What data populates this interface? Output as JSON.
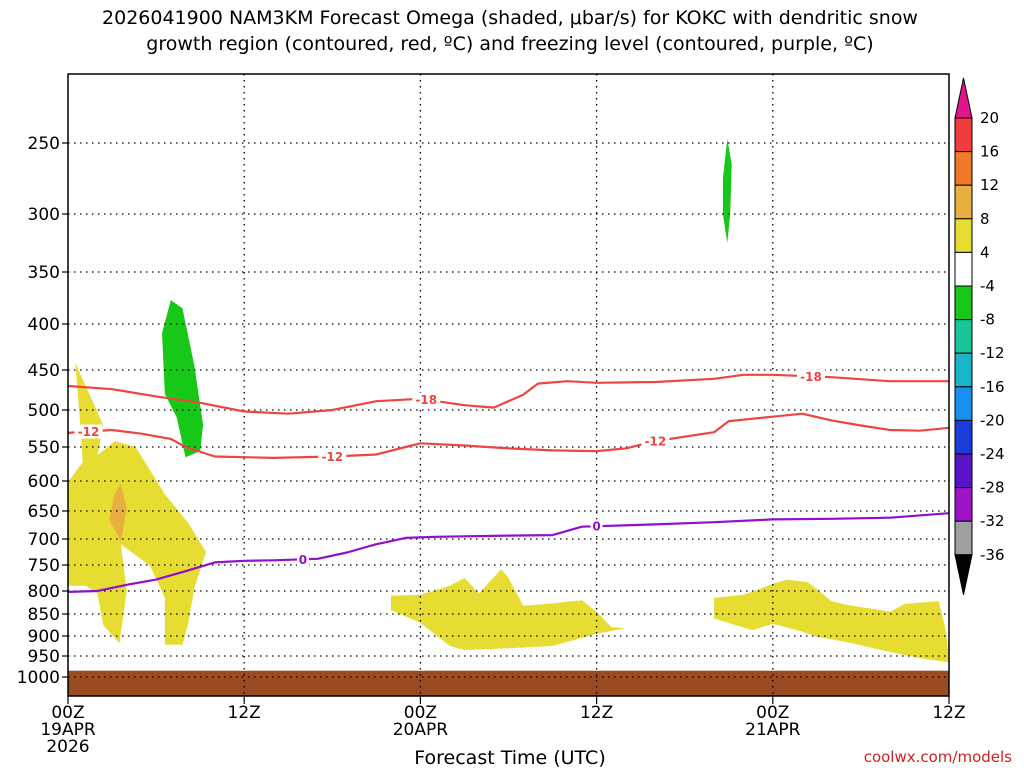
{
  "chart_data": {
    "type": "time-height cross-section",
    "title_line1": "2026041900 NAM3KM Forecast Omega (shaded, μbar/s) for KOKC with dendritic snow",
    "title_line2": "growth region (contoured, red, ºC) and freezing level (contoured, purple, ºC)",
    "xlabel": "Forecast Time (UTC)",
    "credit": "coolwx.com/models",
    "x_range_hours": [
      0,
      60
    ],
    "y_range_hPa": [
      1050,
      200
    ],
    "y_ticks": [
      {
        "v": 250,
        "label": "250"
      },
      {
        "v": 300,
        "label": "300"
      },
      {
        "v": 350,
        "label": "350"
      },
      {
        "v": 400,
        "label": "400"
      },
      {
        "v": 450,
        "label": "450"
      },
      {
        "v": 500,
        "label": "500"
      },
      {
        "v": 550,
        "label": "550"
      },
      {
        "v": 600,
        "label": "600"
      },
      {
        "v": 650,
        "label": "650"
      },
      {
        "v": 700,
        "label": "700"
      },
      {
        "v": 750,
        "label": "750"
      },
      {
        "v": 800,
        "label": "800"
      },
      {
        "v": 850,
        "label": "850"
      },
      {
        "v": 900,
        "label": "900"
      },
      {
        "v": 950,
        "label": "950"
      },
      {
        "v": 1000,
        "label": "1000"
      }
    ],
    "x_ticks": [
      {
        "h": 0,
        "lines": [
          "00Z",
          "19APR",
          "2026"
        ]
      },
      {
        "h": 12,
        "lines": [
          "12Z"
        ]
      },
      {
        "h": 24,
        "lines": [
          "00Z",
          "20APR"
        ]
      },
      {
        "h": 36,
        "lines": [
          "12Z"
        ]
      },
      {
        "h": 48,
        "lines": [
          "00Z",
          "21APR"
        ]
      },
      {
        "h": 60,
        "lines": [
          "12Z"
        ]
      }
    ],
    "colorbar": {
      "labels": [
        "20",
        "16",
        "12",
        "8",
        "4",
        "-4",
        "-8",
        "-12",
        "-16",
        "-20",
        "-24",
        "-28",
        "-32",
        "-36"
      ],
      "colors": [
        "#f03c3c",
        "#f07a28",
        "#e8b040",
        "#e6dc32",
        "#ffffff",
        "#18c818",
        "#16c896",
        "#18b4c8",
        "#1890f0",
        "#1c3cdc",
        "#5a14c8",
        "#a014c8",
        "#a0a0a0"
      ],
      "top_arrow_color": "#e0148c",
      "bottom_arrow_color": "#000000"
    },
    "ground_color": "#9a4b22",
    "ground_top_hPa": 985,
    "series": [
      {
        "name": "-18",
        "color": "#ee4444",
        "label_at": [
          {
            "h": 24.4,
            "text": "-18"
          },
          {
            "h": 50.6,
            "text": "-18"
          }
        ],
        "points": [
          [
            0,
            470
          ],
          [
            3,
            474
          ],
          [
            6,
            483
          ],
          [
            9,
            491
          ],
          [
            12,
            502
          ],
          [
            15,
            505
          ],
          [
            18,
            500
          ],
          [
            21,
            489
          ],
          [
            24,
            486
          ],
          [
            27,
            494
          ],
          [
            29,
            497
          ],
          [
            31,
            481
          ],
          [
            32,
            467
          ],
          [
            34,
            464
          ],
          [
            36,
            466
          ],
          [
            40,
            465
          ],
          [
            44,
            461
          ],
          [
            46,
            456
          ],
          [
            48,
            456
          ],
          [
            52,
            459
          ],
          [
            56,
            464
          ],
          [
            60,
            464
          ]
        ]
      },
      {
        "name": "-12",
        "color": "#ee4444",
        "label_at": [
          {
            "h": 1.4,
            "text": "-12"
          },
          {
            "h": 18.0,
            "text": "-12"
          },
          {
            "h": 40.0,
            "text": "-12"
          }
        ],
        "points": [
          [
            0,
            531
          ],
          [
            3,
            527
          ],
          [
            5,
            532
          ],
          [
            7,
            539
          ],
          [
            8,
            550
          ],
          [
            10,
            564
          ],
          [
            14,
            566
          ],
          [
            18,
            564
          ],
          [
            21,
            561
          ],
          [
            23,
            550
          ],
          [
            24,
            545
          ],
          [
            27,
            548
          ],
          [
            30,
            552
          ],
          [
            33,
            555
          ],
          [
            36,
            556
          ],
          [
            38,
            552
          ],
          [
            40,
            542
          ],
          [
            44,
            530
          ],
          [
            45,
            515
          ],
          [
            48,
            509
          ],
          [
            50,
            505
          ],
          [
            52,
            514
          ],
          [
            54,
            521
          ],
          [
            56,
            527
          ],
          [
            58,
            528
          ],
          [
            60,
            524
          ]
        ]
      },
      {
        "name": "0",
        "color": "#9010cc",
        "label_at": [
          {
            "h": 16.0,
            "text": "0"
          },
          {
            "h": 36.0,
            "text": "0"
          }
        ],
        "points": [
          [
            0,
            802
          ],
          [
            2,
            800
          ],
          [
            4,
            788
          ],
          [
            6,
            778
          ],
          [
            8,
            762
          ],
          [
            10,
            745
          ],
          [
            12,
            742
          ],
          [
            14,
            741
          ],
          [
            17,
            738
          ],
          [
            19,
            726
          ],
          [
            21,
            710
          ],
          [
            23,
            698
          ],
          [
            25,
            696
          ],
          [
            30,
            694
          ],
          [
            33,
            693
          ],
          [
            35,
            678
          ],
          [
            40,
            674
          ],
          [
            44,
            670
          ],
          [
            48,
            665
          ],
          [
            52,
            664
          ],
          [
            56,
            662
          ],
          [
            60,
            654
          ]
        ]
      }
    ],
    "omega_regions": [
      {
        "value_range": "4 to 8",
        "color": "#e6dc32",
        "points": [
          [
            0,
            602
          ],
          [
            1,
            572
          ],
          [
            0.8,
            510
          ],
          [
            0.5,
            442
          ],
          [
            1,
            462
          ],
          [
            2,
            502
          ],
          [
            2.4,
            522
          ],
          [
            2,
            562
          ],
          [
            3.2,
            542
          ],
          [
            4.6,
            550
          ],
          [
            6.6,
            622
          ],
          [
            8.2,
            672
          ],
          [
            9.4,
            725
          ],
          [
            8.6,
            795
          ],
          [
            8.2,
            870
          ],
          [
            7.8,
            922
          ],
          [
            6.6,
            922
          ],
          [
            6.6,
            815
          ],
          [
            5.6,
            752
          ],
          [
            3.6,
            710
          ],
          [
            4,
            800
          ],
          [
            3.5,
            918
          ],
          [
            2.4,
            875
          ],
          [
            2,
            805
          ],
          [
            1.2,
            790
          ],
          [
            0,
            790
          ]
        ]
      },
      {
        "value_range": "8 to 12",
        "color": "#e8b040",
        "points": [
          [
            3.2,
            620
          ],
          [
            3.6,
            605
          ],
          [
            4,
            645
          ],
          [
            3.6,
            705
          ],
          [
            2.8,
            665
          ]
        ]
      },
      {
        "value_range": "-4 to -8",
        "color": "#18c818",
        "points": [
          [
            6.4,
            410
          ],
          [
            7,
            377
          ],
          [
            7.8,
            385
          ],
          [
            8.6,
            445
          ],
          [
            9.2,
            520
          ],
          [
            9,
            556
          ],
          [
            8,
            565
          ],
          [
            7.4,
            510
          ],
          [
            6.6,
            480
          ]
        ]
      },
      {
        "value_range": "-4 to -8",
        "color": "#18c818",
        "points": [
          [
            44.6,
            275
          ],
          [
            44.9,
            247
          ],
          [
            45.2,
            265
          ],
          [
            45.1,
            300
          ],
          [
            44.9,
            325
          ],
          [
            44.6,
            300
          ]
        ]
      },
      {
        "value_range": "4 to 8",
        "color": "#e6dc32",
        "points": [
          [
            22,
            810
          ],
          [
            24,
            808
          ],
          [
            26,
            790
          ],
          [
            27,
            775
          ],
          [
            27.5,
            790
          ],
          [
            28,
            805
          ],
          [
            29.5,
            758
          ],
          [
            30,
            775
          ],
          [
            31,
            832
          ],
          [
            33,
            827
          ],
          [
            35,
            820
          ],
          [
            36,
            845
          ],
          [
            37,
            880
          ],
          [
            38,
            882
          ],
          [
            36,
            895
          ],
          [
            33,
            925
          ],
          [
            29.2,
            932
          ],
          [
            27,
            935
          ],
          [
            26,
            925
          ],
          [
            24,
            870
          ],
          [
            22,
            842
          ]
        ]
      },
      {
        "value_range": "4 to 8",
        "color": "#e6dc32",
        "points": [
          [
            44,
            815
          ],
          [
            46,
            808
          ],
          [
            46.6,
            802
          ],
          [
            48,
            786
          ],
          [
            49,
            778
          ],
          [
            50.4,
            783
          ],
          [
            52,
            822
          ],
          [
            53,
            830
          ],
          [
            56,
            845
          ],
          [
            57,
            828
          ],
          [
            59.3,
            822
          ],
          [
            59.8,
            890
          ],
          [
            60,
            965
          ],
          [
            58,
            955
          ],
          [
            56,
            940
          ],
          [
            53,
            915
          ],
          [
            51,
            902
          ],
          [
            50,
            890
          ],
          [
            48,
            872
          ],
          [
            46.6,
            887
          ],
          [
            44,
            860
          ]
        ]
      }
    ]
  }
}
